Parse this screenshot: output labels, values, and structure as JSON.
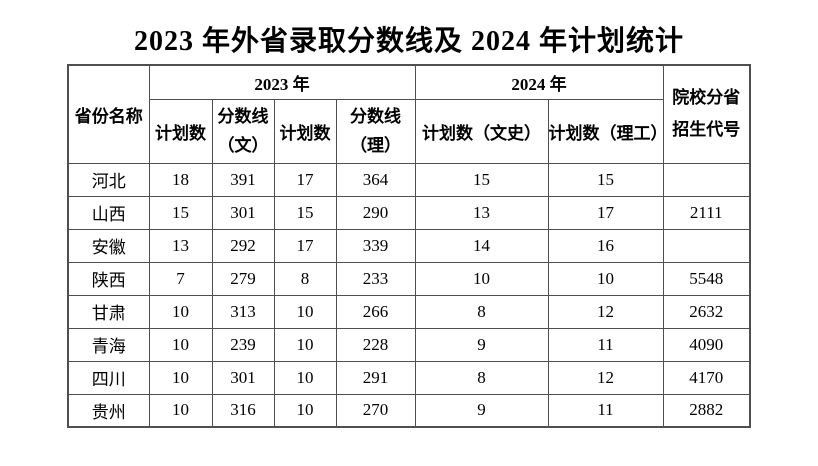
{
  "title": "2023 年外省录取分数线及 2024 年计划统计",
  "table": {
    "header": {
      "province": "省份名称",
      "year2023": "2023 年",
      "year2024": "2024 年",
      "plan": "计划数",
      "score_wen_line1": "分数线",
      "score_wen_line2": "（文）",
      "score_li_line1": "分数线",
      "score_li_line2": "（理）",
      "plan_wenshi": "计划数（文史）",
      "plan_ligong": "计划数（理工）",
      "code_line1": "院校分省",
      "code_line2": "招生代号"
    },
    "rows": [
      {
        "province": "河北",
        "v": [
          "18",
          "391",
          "17",
          "364",
          "15",
          "15",
          ""
        ]
      },
      {
        "province": "山西",
        "v": [
          "15",
          "301",
          "15",
          "290",
          "13",
          "17",
          "2111"
        ]
      },
      {
        "province": "安徽",
        "v": [
          "13",
          "292",
          "17",
          "339",
          "14",
          "16",
          ""
        ]
      },
      {
        "province": "陕西",
        "v": [
          "7",
          "279",
          "8",
          "233",
          "10",
          "10",
          "5548"
        ]
      },
      {
        "province": "甘肃",
        "v": [
          "10",
          "313",
          "10",
          "266",
          "8",
          "12",
          "2632"
        ]
      },
      {
        "province": "青海",
        "v": [
          "10",
          "239",
          "10",
          "228",
          "9",
          "11",
          "4090"
        ]
      },
      {
        "province": "四川",
        "v": [
          "10",
          "301",
          "10",
          "291",
          "8",
          "12",
          "4170"
        ]
      },
      {
        "province": "贵州",
        "v": [
          "10",
          "316",
          "10",
          "270",
          "9",
          "11",
          "2882"
        ]
      }
    ],
    "colors": {
      "border": "#4f4f4f",
      "text": "#000000",
      "background": "#ffffff"
    }
  }
}
